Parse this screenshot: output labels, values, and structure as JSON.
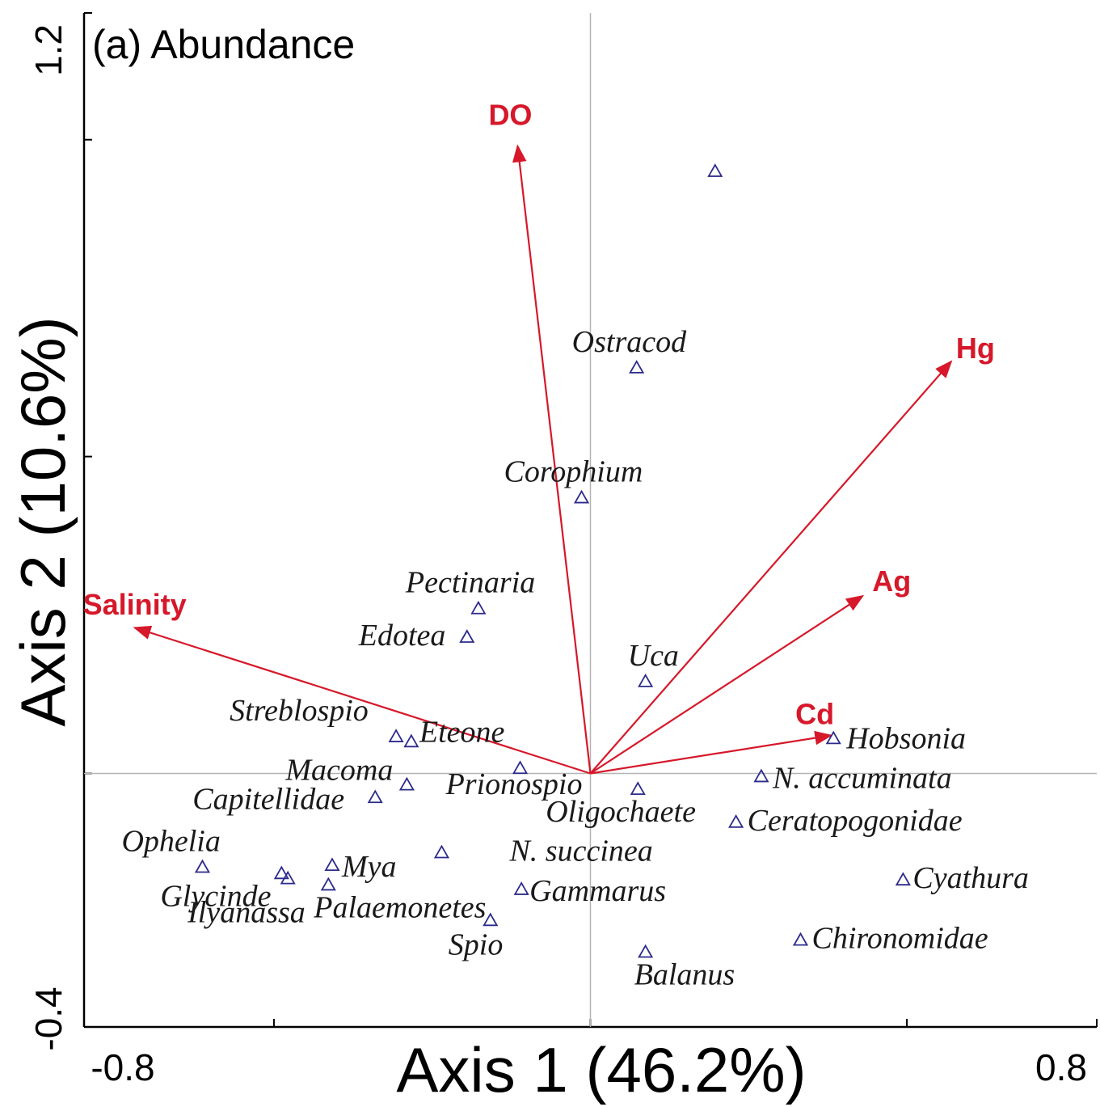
{
  "chart_data": {
    "type": "scatter",
    "title": "(a) Abundance",
    "xlabel": "Axis 1 (46.2%)",
    "ylabel": "Axis 2 (10.6%)",
    "xlim": [
      -0.8,
      0.8
    ],
    "ylim": [
      -0.4,
      1.2
    ],
    "x_tick_labels": [
      "-0.8",
      "0.8"
    ],
    "y_tick_labels": [
      "-0.4",
      "1.2"
    ],
    "x_ticks": [
      -0.8,
      -0.5,
      0.0,
      0.5,
      0.8
    ],
    "y_ticks": [
      -0.4,
      0.0,
      0.5,
      1.0,
      1.2
    ],
    "grid": false,
    "zero_lines": true,
    "colors": {
      "vector": "#d6182a",
      "species": "#2c2a8c"
    },
    "vectors": [
      {
        "name": "DO",
        "x": -0.115,
        "y": 0.99
      },
      {
        "name": "Hg",
        "x": 0.57,
        "y": 0.65
      },
      {
        "name": "Ag",
        "x": 0.43,
        "y": 0.28
      },
      {
        "name": "Cd",
        "x": 0.38,
        "y": 0.06
      },
      {
        "name": "Salinity",
        "x": -0.72,
        "y": 0.23
      }
    ],
    "species": [
      {
        "name": "",
        "x": 0.197,
        "y": 0.95
      },
      {
        "name": "Ostracod",
        "x": 0.073,
        "y": 0.64
      },
      {
        "name": "Corophium",
        "x": -0.014,
        "y": 0.435
      },
      {
        "name": "Pectinaria",
        "x": -0.177,
        "y": 0.26
      },
      {
        "name": "Edotea",
        "x": -0.195,
        "y": 0.215
      },
      {
        "name": "Uca",
        "x": 0.087,
        "y": 0.145
      },
      {
        "name": "Hobsonia",
        "x": 0.384,
        "y": 0.055
      },
      {
        "name": "Streblospio",
        "x": -0.307,
        "y": 0.058
      },
      {
        "name": "Eteone",
        "x": -0.283,
        "y": 0.05
      },
      {
        "name": "Prionospio",
        "x": -0.111,
        "y": 0.008
      },
      {
        "name": "N. accuminata",
        "x": 0.27,
        "y": -0.005
      },
      {
        "name": "Macoma",
        "x": -0.29,
        "y": -0.018
      },
      {
        "name": "Oligochaete",
        "x": 0.075,
        "y": -0.025
      },
      {
        "name": "Capitellidae",
        "x": -0.34,
        "y": -0.038
      },
      {
        "name": "Ceratopogonidae",
        "x": 0.23,
        "y": -0.077
      },
      {
        "name": "N. succinea",
        "x": -0.235,
        "y": -0.125
      },
      {
        "name": "Mya",
        "x": -0.408,
        "y": -0.145
      },
      {
        "name": "Ophelia",
        "x": -0.613,
        "y": -0.148
      },
      {
        "name": "Glycinde",
        "x": -0.488,
        "y": -0.158
      },
      {
        "name": "Ilyanassa",
        "x": -0.478,
        "y": -0.166
      },
      {
        "name": "Cyathura",
        "x": 0.494,
        "y": -0.168
      },
      {
        "name": "Palaemonetes",
        "x": -0.414,
        "y": -0.176
      },
      {
        "name": "Gammarus",
        "x": -0.109,
        "y": -0.183
      },
      {
        "name": "Spio",
        "x": -0.158,
        "y": -0.232
      },
      {
        "name": "Chironomidae",
        "x": 0.332,
        "y": -0.263
      },
      {
        "name": "Balanus",
        "x": 0.087,
        "y": -0.282
      }
    ]
  }
}
